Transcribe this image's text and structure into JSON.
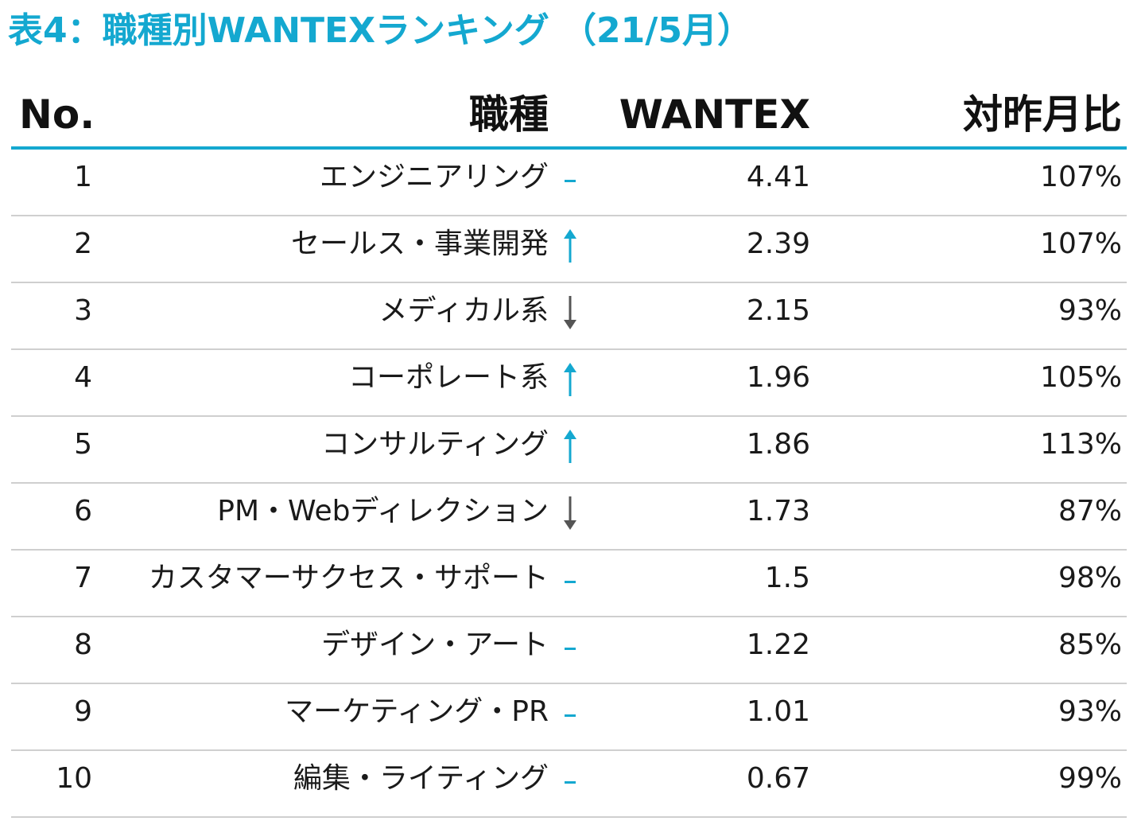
{
  "title": "表4：職種別WANTEXランキング （21/5月）",
  "colors": {
    "accent": "#14a8d0",
    "down": "#555555",
    "rule": "#cfcfcf"
  },
  "headers": {
    "no": "No.",
    "job": "職種",
    "wantex": "WANTEX",
    "yoy": "対昨月比"
  },
  "rows": [
    {
      "no": "1",
      "job": "エンジニアリング",
      "trend": "flat",
      "wantex": "4.41",
      "yoy": "107%"
    },
    {
      "no": "2",
      "job": "セールス・事業開発",
      "trend": "up",
      "wantex": "2.39",
      "yoy": "107%"
    },
    {
      "no": "3",
      "job": "メディカル系",
      "trend": "down",
      "wantex": "2.15",
      "yoy": "93%"
    },
    {
      "no": "4",
      "job": "コーポレート系",
      "trend": "up",
      "wantex": "1.96",
      "yoy": "105%"
    },
    {
      "no": "5",
      "job": "コンサルティング",
      "trend": "up",
      "wantex": "1.86",
      "yoy": "113%"
    },
    {
      "no": "6",
      "job": "PM・Webディレクション",
      "trend": "down",
      "wantex": "1.73",
      "yoy": "87%"
    },
    {
      "no": "7",
      "job": "カスタマーサクセス・サポート",
      "trend": "flat",
      "wantex": "1.5",
      "yoy": "98%"
    },
    {
      "no": "8",
      "job": "デザイン・アート",
      "trend": "flat",
      "wantex": "1.22",
      "yoy": "85%"
    },
    {
      "no": "9",
      "job": "マーケティング・PR",
      "trend": "flat",
      "wantex": "1.01",
      "yoy": "93%"
    },
    {
      "no": "10",
      "job": "編集・ライティング",
      "trend": "flat",
      "wantex": "0.67",
      "yoy": "99%"
    }
  ]
}
